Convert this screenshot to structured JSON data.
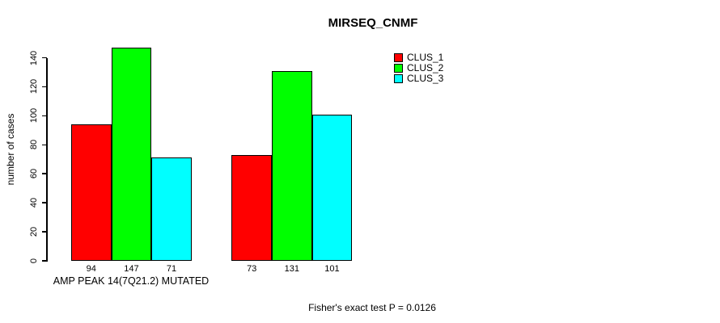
{
  "chart_data": {
    "type": "bar",
    "title": "MIRSEQ_CNMF",
    "ylabel": "number of cases",
    "xlabel": "AMP PEAK 14(7Q21.2) MUTATED",
    "categories": [
      "AMP PEAK 14(7Q21.2) MUTATED",
      ""
    ],
    "series": [
      {
        "name": "CLUS_1",
        "color": "#ff0000",
        "values": [
          94,
          73
        ]
      },
      {
        "name": "CLUS_2",
        "color": "#00ff00",
        "values": [
          147,
          131
        ]
      },
      {
        "name": "CLUS_3",
        "color": "#00ffff",
        "values": [
          71,
          101
        ]
      }
    ],
    "bar_value_labels": [
      [
        94,
        147,
        71
      ],
      [
        73,
        131,
        101
      ]
    ],
    "yticks": [
      0,
      20,
      40,
      60,
      80,
      100,
      120,
      140
    ],
    "ylim": [
      0,
      140
    ],
    "grid": false,
    "legend_position": "top-right",
    "annotation": "Fisher's exact test P = 0.0126",
    "bar_border_color": "#000000",
    "axis_color": "#000000",
    "background": "#ffffff"
  }
}
